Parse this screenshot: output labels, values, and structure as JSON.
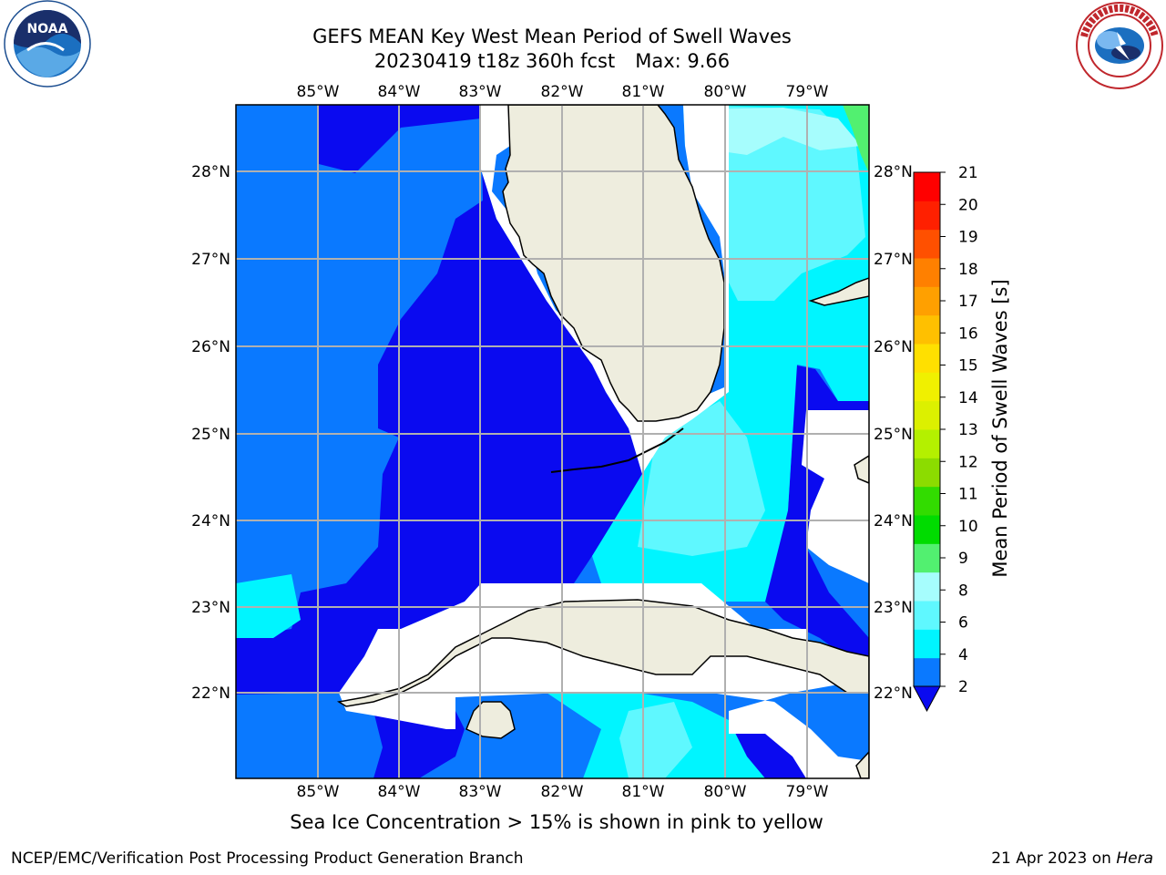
{
  "header": {
    "title_line1": "GEFS MEAN Key West Mean Period of Swell Waves",
    "title_line2_date": "20230419 t18z 360h fcst",
    "title_line2_max": "Max: 9.66"
  },
  "map": {
    "lon_ticks": [
      "85°W",
      "84°W",
      "83°W",
      "82°W",
      "81°W",
      "80°W",
      "79°W"
    ],
    "lat_ticks": [
      "28°N",
      "27°N",
      "26°N",
      "25°N",
      "24°N",
      "23°N",
      "22°N"
    ],
    "lon_range": [
      -86.0,
      -78.3
    ],
    "lat_range": [
      21.0,
      28.75
    ],
    "colors": {
      "land": "#eeedde",
      "missing": "#ffffff",
      "band_2_4": "#0a79ff",
      "band_below_2": "#0a0af0",
      "band_4_6": "#00f5ff",
      "band_6_8": "#5ff8ff",
      "band_8_9": "#a6fdfd",
      "band_9_10": "#52f070",
      "grid": "#b0b0b0"
    }
  },
  "colorbar": {
    "label": "Mean Period of Swell Waves [s]",
    "levels": [
      2,
      4,
      6,
      8,
      9,
      10,
      11,
      12,
      13,
      14,
      15,
      16,
      17,
      18,
      19,
      20,
      21
    ],
    "colors": [
      "#0a79ff",
      "#00f5ff",
      "#5ff8ff",
      "#a6fdfd",
      "#52f070",
      "#00dc00",
      "#32dc00",
      "#8cdc00",
      "#b4f000",
      "#dcf000",
      "#f0f000",
      "#ffe000",
      "#ffc000",
      "#ffa000",
      "#ff8000",
      "#ff5000",
      "#ff2000",
      "#ff0000"
    ],
    "under_color": "#0a0af0"
  },
  "caption": "Sea Ice Concentration > 15% is shown in pink to yellow",
  "footer": {
    "left": "NCEP/EMC/Verification Post Processing Product Generation Branch",
    "right_date": "21 Apr 2023 on ",
    "right_host": "Hera"
  }
}
